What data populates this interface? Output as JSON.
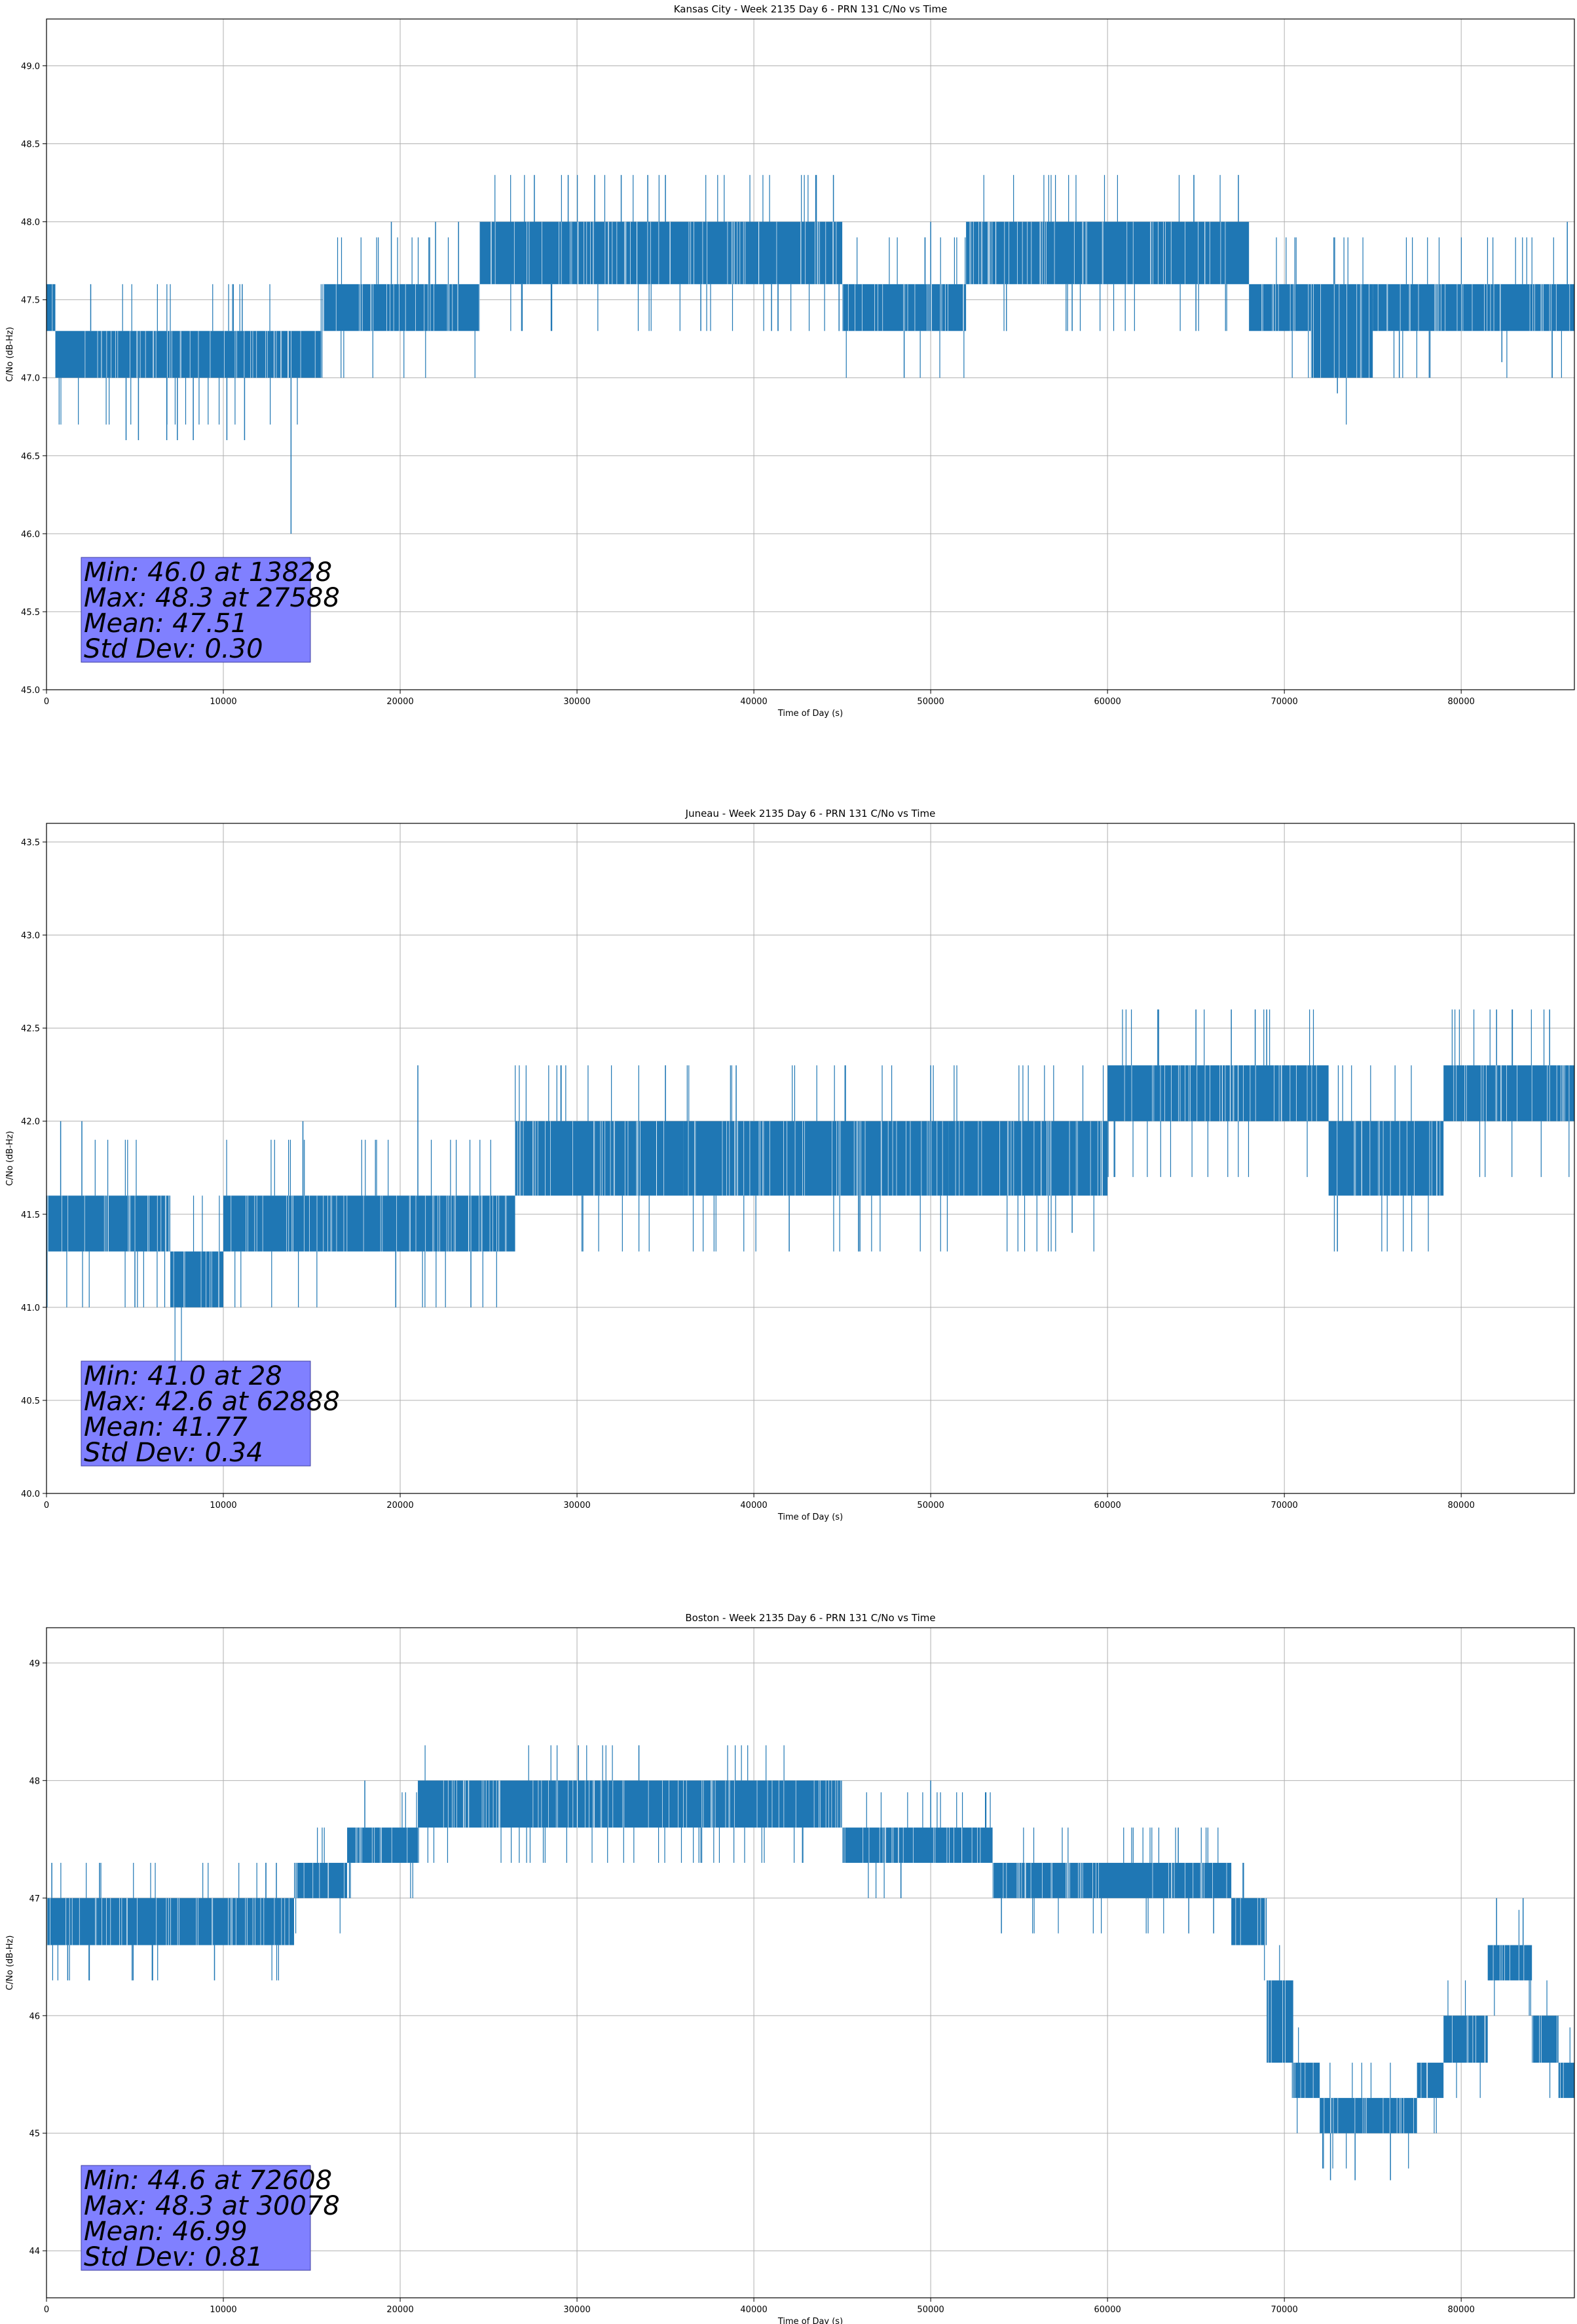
{
  "colors": {
    "series": "#1f77b4",
    "grid": "#b0b0b0",
    "statbox": "#8080ff"
  },
  "chart_data": [
    {
      "type": "line",
      "title": "Kansas City - Week 2135 Day 6 - PRN 131 C/No vs Time",
      "xlabel": "Time of Day (s)",
      "ylabel": "C/No (dB-Hz)",
      "xlim": [
        0,
        86400
      ],
      "ylim": [
        45.0,
        49.3
      ],
      "xticks": [
        0,
        10000,
        20000,
        30000,
        40000,
        50000,
        60000,
        70000,
        80000
      ],
      "yticks": [
        "45.0",
        "45.5",
        "46.0",
        "46.5",
        "47.0",
        "47.5",
        "48.0",
        "48.5",
        "49.0"
      ],
      "grid": true,
      "series": [
        {
          "bands": [
            {
              "x0": 0,
              "x1": 500,
              "lo": 47.3,
              "hi": 47.6
            },
            {
              "x0": 500,
              "x1": 15600,
              "lo": 47.0,
              "hi": 47.3
            },
            {
              "x0": 15600,
              "x1": 24500,
              "lo": 47.3,
              "hi": 47.6
            },
            {
              "x0": 24500,
              "x1": 45000,
              "lo": 47.6,
              "hi": 48.0
            },
            {
              "x0": 45000,
              "x1": 52000,
              "lo": 47.3,
              "hi": 47.6
            },
            {
              "x0": 52000,
              "x1": 68000,
              "lo": 47.6,
              "hi": 48.0
            },
            {
              "x0": 68000,
              "x1": 71500,
              "lo": 47.3,
              "hi": 47.6
            },
            {
              "x0": 71500,
              "x1": 75000,
              "lo": 47.0,
              "hi": 47.6
            },
            {
              "x0": 75000,
              "x1": 86400,
              "lo": 47.3,
              "hi": 47.6
            }
          ],
          "spikes": [
            {
              "x": 2500,
              "y": 47.6
            },
            {
              "x": 4500,
              "y": 46.6
            },
            {
              "x": 5200,
              "y": 46.6
            },
            {
              "x": 6800,
              "y": 46.6
            },
            {
              "x": 7400,
              "y": 46.6
            },
            {
              "x": 8300,
              "y": 46.6
            },
            {
              "x": 10200,
              "y": 46.6
            },
            {
              "x": 11200,
              "y": 46.6
            },
            {
              "x": 13828,
              "y": 46.0
            },
            {
              "x": 19500,
              "y": 48.0
            },
            {
              "x": 22000,
              "y": 48.0
            },
            {
              "x": 23300,
              "y": 48.0
            },
            {
              "x": 27588,
              "y": 48.3
            },
            {
              "x": 29500,
              "y": 48.3
            },
            {
              "x": 31000,
              "y": 48.3
            },
            {
              "x": 32500,
              "y": 48.3
            },
            {
              "x": 34000,
              "y": 48.3
            },
            {
              "x": 35000,
              "y": 48.3
            },
            {
              "x": 37000,
              "y": 47.3
            },
            {
              "x": 41000,
              "y": 47.3
            },
            {
              "x": 43500,
              "y": 48.3
            },
            {
              "x": 44500,
              "y": 48.3
            },
            {
              "x": 48500,
              "y": 47.0
            },
            {
              "x": 50000,
              "y": 48.0
            },
            {
              "x": 58000,
              "y": 47.3
            },
            {
              "x": 65000,
              "y": 47.3
            },
            {
              "x": 73000,
              "y": 46.9
            },
            {
              "x": 76500,
              "y": 47.0
            },
            {
              "x": 82300,
              "y": 47.1
            },
            {
              "x": 86000,
              "y": 48.0
            }
          ]
        }
      ],
      "annotation": [
        "Min: 46.0 at 13828",
        "Max: 48.3 at 27588",
        "Mean: 47.51",
        "Std Dev: 0.30"
      ]
    },
    {
      "type": "line",
      "title": "Juneau - Week 2135 Day 6 - PRN 131 C/No vs Time",
      "xlabel": "Time of Day (s)",
      "ylabel": "C/No (dB-Hz)",
      "xlim": [
        0,
        86400
      ],
      "ylim": [
        40.0,
        43.6
      ],
      "xticks": [
        0,
        10000,
        20000,
        30000,
        40000,
        50000,
        60000,
        70000,
        80000
      ],
      "yticks": [
        "40.0",
        "40.5",
        "41.0",
        "41.5",
        "42.0",
        "42.5",
        "43.0",
        "43.5"
      ],
      "grid": true,
      "series": [
        {
          "bands": [
            {
              "x0": 0,
              "x1": 7000,
              "lo": 41.3,
              "hi": 41.6
            },
            {
              "x0": 7000,
              "x1": 10000,
              "lo": 41.0,
              "hi": 41.3
            },
            {
              "x0": 10000,
              "x1": 26500,
              "lo": 41.3,
              "hi": 41.6
            },
            {
              "x0": 26500,
              "x1": 36000,
              "lo": 41.6,
              "hi": 42.0
            },
            {
              "x0": 36000,
              "x1": 51000,
              "lo": 41.6,
              "hi": 42.0
            },
            {
              "x0": 51000,
              "x1": 60000,
              "lo": 41.6,
              "hi": 42.0
            },
            {
              "x0": 60000,
              "x1": 72500,
              "lo": 42.0,
              "hi": 42.3
            },
            {
              "x0": 72500,
              "x1": 79000,
              "lo": 41.6,
              "hi": 42.0
            },
            {
              "x0": 79000,
              "x1": 86400,
              "lo": 42.0,
              "hi": 42.3
            }
          ],
          "spikes": [
            {
              "x": 28,
              "y": 41.0
            },
            {
              "x": 800,
              "y": 42.0
            },
            {
              "x": 2000,
              "y": 42.0
            },
            {
              "x": 5000,
              "y": 41.0
            },
            {
              "x": 14500,
              "y": 42.0
            },
            {
              "x": 21000,
              "y": 42.3
            },
            {
              "x": 24000,
              "y": 41.0
            },
            {
              "x": 35000,
              "y": 42.3
            },
            {
              "x": 39000,
              "y": 42.3
            },
            {
              "x": 42000,
              "y": 41.3
            },
            {
              "x": 46000,
              "y": 41.3
            },
            {
              "x": 50000,
              "y": 42.3
            },
            {
              "x": 58000,
              "y": 41.4
            },
            {
              "x": 62888,
              "y": 42.6
            },
            {
              "x": 65000,
              "y": 42.6
            },
            {
              "x": 67000,
              "y": 42.6
            },
            {
              "x": 69000,
              "y": 42.6
            },
            {
              "x": 73000,
              "y": 41.3
            },
            {
              "x": 78000,
              "y": 41.6
            },
            {
              "x": 82000,
              "y": 42.6
            },
            {
              "x": 85000,
              "y": 42.6
            }
          ]
        }
      ],
      "annotation": [
        "Min: 41.0 at 28",
        "Max: 42.6 at 62888",
        "Mean: 41.77",
        "Std Dev: 0.34"
      ]
    },
    {
      "type": "line",
      "title": "Boston - Week 2135 Day 6 - PRN 131 C/No vs Time",
      "xlabel": "Time of Day (s)",
      "ylabel": "C/No (dB-Hz)",
      "xlim": [
        0,
        86400
      ],
      "ylim": [
        43.6,
        49.3
      ],
      "xticks": [
        0,
        10000,
        20000,
        30000,
        40000,
        50000,
        60000,
        70000,
        80000
      ],
      "yticks": [
        "44",
        "45",
        "46",
        "47",
        "48",
        "49"
      ],
      "grid": true,
      "series": [
        {
          "bands": [
            {
              "x0": 0,
              "x1": 4500,
              "lo": 46.6,
              "hi": 47.0
            },
            {
              "x0": 4500,
              "x1": 14000,
              "lo": 46.6,
              "hi": 47.0
            },
            {
              "x0": 14000,
              "x1": 17000,
              "lo": 47.0,
              "hi": 47.3
            },
            {
              "x0": 17000,
              "x1": 21000,
              "lo": 47.3,
              "hi": 47.6
            },
            {
              "x0": 21000,
              "x1": 45000,
              "lo": 47.6,
              "hi": 48.0
            },
            {
              "x0": 45000,
              "x1": 53500,
              "lo": 47.3,
              "hi": 47.6
            },
            {
              "x0": 53500,
              "x1": 67000,
              "lo": 47.0,
              "hi": 47.3
            },
            {
              "x0": 67000,
              "x1": 69000,
              "lo": 46.6,
              "hi": 47.0
            },
            {
              "x0": 69000,
              "x1": 70500,
              "lo": 45.6,
              "hi": 46.3
            },
            {
              "x0": 70500,
              "x1": 72000,
              "lo": 45.3,
              "hi": 45.6
            },
            {
              "x0": 72000,
              "x1": 77500,
              "lo": 45.0,
              "hi": 45.3
            },
            {
              "x0": 77500,
              "x1": 79000,
              "lo": 45.3,
              "hi": 45.6
            },
            {
              "x0": 79000,
              "x1": 81500,
              "lo": 45.6,
              "hi": 46.0
            },
            {
              "x0": 81500,
              "x1": 84000,
              "lo": 46.3,
              "hi": 46.6
            },
            {
              "x0": 84000,
              "x1": 85500,
              "lo": 45.6,
              "hi": 46.0
            },
            {
              "x0": 85500,
              "x1": 86400,
              "lo": 45.3,
              "hi": 45.6
            }
          ],
          "spikes": [
            {
              "x": 300,
              "y": 47.3
            },
            {
              "x": 1200,
              "y": 46.3
            },
            {
              "x": 3000,
              "y": 47.3
            },
            {
              "x": 6000,
              "y": 46.3
            },
            {
              "x": 9500,
              "y": 46.3
            },
            {
              "x": 13000,
              "y": 47.3
            },
            {
              "x": 18000,
              "y": 48.0
            },
            {
              "x": 30078,
              "y": 48.3
            },
            {
              "x": 33500,
              "y": 48.3
            },
            {
              "x": 50000,
              "y": 48.0
            },
            {
              "x": 54000,
              "y": 46.7
            },
            {
              "x": 64000,
              "y": 47.6
            },
            {
              "x": 66000,
              "y": 46.7
            },
            {
              "x": 72608,
              "y": 44.6
            },
            {
              "x": 74000,
              "y": 44.6
            },
            {
              "x": 76000,
              "y": 44.6
            },
            {
              "x": 82000,
              "y": 47.0
            },
            {
              "x": 83500,
              "y": 47.0
            }
          ]
        }
      ],
      "annotation": [
        "Min: 44.6 at 72608",
        "Max: 48.3 at 30078",
        "Mean: 46.99",
        "Std Dev: 0.81"
      ]
    }
  ]
}
